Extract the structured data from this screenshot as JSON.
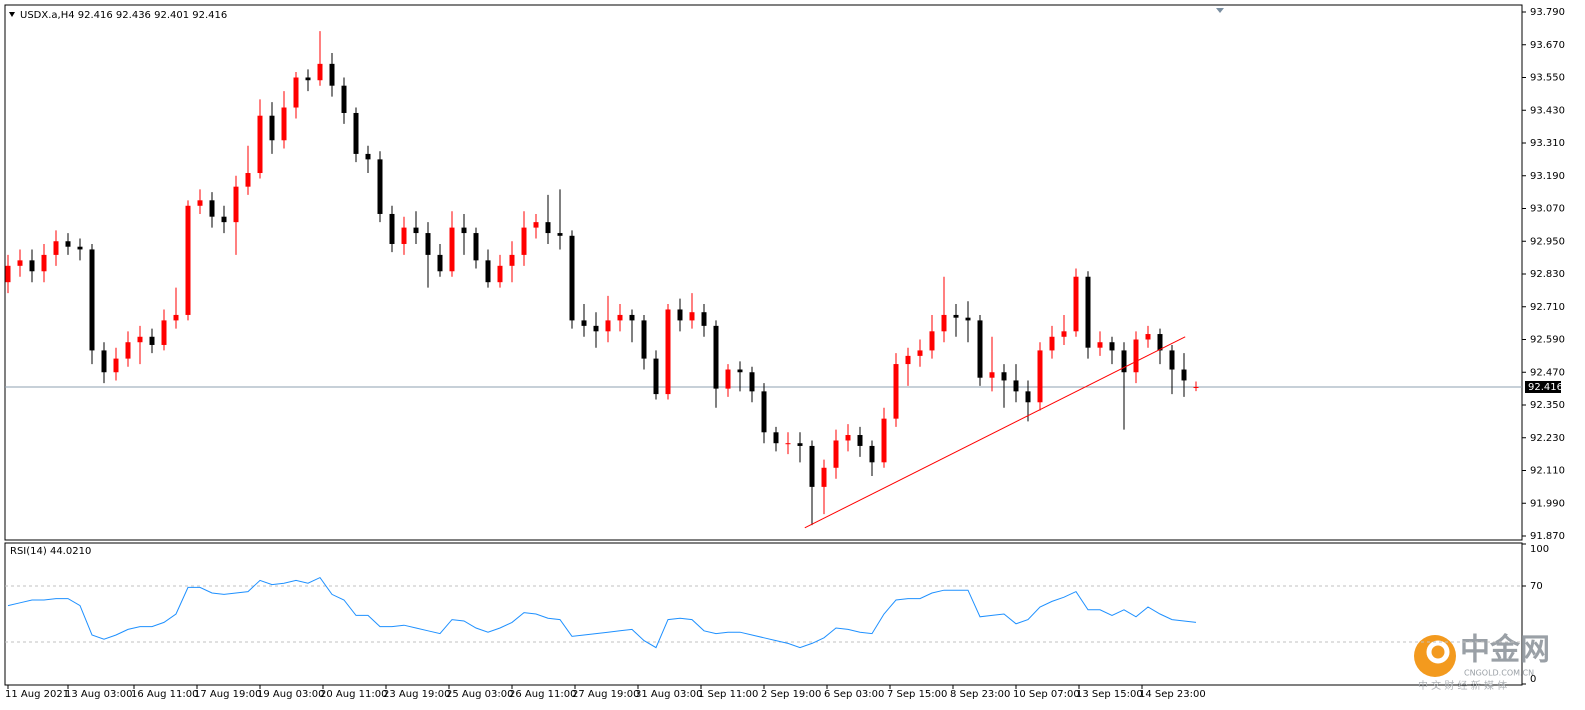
{
  "chart_data": [
    {
      "type": "candlestick",
      "title": "USDX.a,H4  92.416 92.436 92.401 92.416",
      "open": [
        92.8,
        92.86,
        92.88,
        92.84,
        92.9,
        92.95,
        92.93,
        92.92,
        92.55,
        92.47,
        92.52,
        92.58,
        92.6,
        92.57,
        92.66,
        92.68,
        93.08,
        93.1,
        93.04,
        93.02,
        93.15,
        93.2,
        93.41,
        93.32,
        93.44,
        93.55,
        93.54,
        93.6,
        93.52,
        93.42,
        93.27,
        93.25,
        93.05,
        92.94,
        93.0,
        92.98,
        92.9,
        92.84,
        93.0,
        92.98,
        92.88,
        92.8,
        92.86,
        92.9,
        93.0,
        93.02,
        92.98,
        92.97,
        92.66,
        92.64,
        92.62,
        92.66,
        92.68,
        92.66,
        92.52,
        92.39,
        92.7,
        92.66,
        92.69,
        92.64,
        92.41,
        92.48,
        92.47,
        92.4,
        92.25,
        92.21,
        92.21,
        92.2,
        92.05,
        92.12,
        92.22,
        92.24,
        92.2,
        92.14,
        92.3,
        92.5,
        92.53,
        92.55,
        92.62,
        92.68,
        92.67,
        92.66,
        92.45,
        92.47,
        92.44,
        92.4,
        92.36,
        92.55,
        92.6,
        92.62,
        92.82,
        92.56,
        92.58,
        92.55,
        92.47,
        92.59,
        92.61,
        92.55,
        92.48,
        92.416
      ],
      "high": [
        92.9,
        92.92,
        92.92,
        92.94,
        92.99,
        92.98,
        92.96,
        92.94,
        92.58,
        92.56,
        92.62,
        92.64,
        92.63,
        92.7,
        92.78,
        93.1,
        93.14,
        93.13,
        93.08,
        93.19,
        93.3,
        93.47,
        93.46,
        93.5,
        93.57,
        93.58,
        93.72,
        93.64,
        93.55,
        93.44,
        93.3,
        93.28,
        93.08,
        93.04,
        93.06,
        93.02,
        92.94,
        93.06,
        93.05,
        93.0,
        92.92,
        92.9,
        92.95,
        93.06,
        93.05,
        93.12,
        93.14,
        92.99,
        92.72,
        92.69,
        92.75,
        92.72,
        92.7,
        92.68,
        92.55,
        92.72,
        92.74,
        92.76,
        92.72,
        92.66,
        92.5,
        92.51,
        92.49,
        92.43,
        92.27,
        92.25,
        92.25,
        92.22,
        92.15,
        92.26,
        92.28,
        92.27,
        92.22,
        92.34,
        92.54,
        92.56,
        92.59,
        92.68,
        92.82,
        92.72,
        92.73,
        92.68,
        92.6,
        92.5,
        92.5,
        92.44,
        92.58,
        92.64,
        92.68,
        92.85,
        92.84,
        92.62,
        92.6,
        92.58,
        92.62,
        92.64,
        92.63,
        92.57,
        92.54,
        92.436
      ],
      "low": [
        92.76,
        92.82,
        92.8,
        92.8,
        92.86,
        92.9,
        92.88,
        92.5,
        92.43,
        92.44,
        92.49,
        92.5,
        92.54,
        92.55,
        92.63,
        92.66,
        93.05,
        93.0,
        92.98,
        92.9,
        93.12,
        93.18,
        93.27,
        93.29,
        93.4,
        93.5,
        93.52,
        93.48,
        93.38,
        93.24,
        93.2,
        93.02,
        92.91,
        92.9,
        92.94,
        92.78,
        92.82,
        92.82,
        92.9,
        92.85,
        92.78,
        92.78,
        92.8,
        92.86,
        92.96,
        92.94,
        92.92,
        92.63,
        92.6,
        92.56,
        92.58,
        92.62,
        92.58,
        92.48,
        92.37,
        92.37,
        92.62,
        92.63,
        92.6,
        92.34,
        92.38,
        92.4,
        92.36,
        92.21,
        92.18,
        92.17,
        92.14,
        91.91,
        91.95,
        92.08,
        92.18,
        92.16,
        92.09,
        92.12,
        92.27,
        92.42,
        92.49,
        92.52,
        92.58,
        92.6,
        92.58,
        92.42,
        92.4,
        92.34,
        92.36,
        92.29,
        92.33,
        92.52,
        92.57,
        92.6,
        92.52,
        92.53,
        92.5,
        92.26,
        92.43,
        92.56,
        92.5,
        92.39,
        92.38,
        92.401
      ],
      "close": [
        92.86,
        92.88,
        92.84,
        92.9,
        92.95,
        92.93,
        92.92,
        92.55,
        92.47,
        92.52,
        92.58,
        92.6,
        92.57,
        92.66,
        92.68,
        93.08,
        93.1,
        93.04,
        93.02,
        93.15,
        93.2,
        93.41,
        93.32,
        93.44,
        93.55,
        93.54,
        93.6,
        93.52,
        93.42,
        93.27,
        93.25,
        93.05,
        92.94,
        93.0,
        92.98,
        92.9,
        92.84,
        93.0,
        92.98,
        92.88,
        92.8,
        92.86,
        92.9,
        93.0,
        93.02,
        92.98,
        92.97,
        92.66,
        92.64,
        92.62,
        92.66,
        92.68,
        92.66,
        92.52,
        92.39,
        92.7,
        92.66,
        92.69,
        92.64,
        92.41,
        92.48,
        92.47,
        92.4,
        92.25,
        92.21,
        92.21,
        92.2,
        92.05,
        92.12,
        92.22,
        92.24,
        92.2,
        92.14,
        92.3,
        92.5,
        92.53,
        92.55,
        92.62,
        92.68,
        92.67,
        92.66,
        92.45,
        92.47,
        92.44,
        92.4,
        92.36,
        92.55,
        92.6,
        92.62,
        92.82,
        92.56,
        92.58,
        92.55,
        92.47,
        92.59,
        92.61,
        92.55,
        92.48,
        92.44,
        92.416
      ],
      "up_color": "#ff0000",
      "down_color": "#000000",
      "last_price": 92.416,
      "last_price_color": "#8fa0b0",
      "trendline": {
        "color": "#ff0000",
        "x": [
          66.4,
          98.1
        ],
        "y": [
          91.9,
          92.6
        ]
      },
      "ylim": [
        91.87,
        93.79
      ],
      "yticks": [
        {
          "value": 93.79,
          "label": "93.790"
        },
        {
          "value": 93.67,
          "label": "93.670"
        },
        {
          "value": 93.55,
          "label": "93.550"
        },
        {
          "value": 93.43,
          "label": "93.430"
        },
        {
          "value": 93.31,
          "label": "93.310"
        },
        {
          "value": 93.19,
          "label": "93.190"
        },
        {
          "value": 93.07,
          "label": "93.070"
        },
        {
          "value": 92.95,
          "label": "92.950"
        },
        {
          "value": 92.83,
          "label": "92.830"
        },
        {
          "value": 92.71,
          "label": "92.710"
        },
        {
          "value": 92.59,
          "label": "92.590"
        },
        {
          "value": 92.47,
          "label": "92.470"
        },
        {
          "value": 92.35,
          "label": "92.350"
        },
        {
          "value": 92.23,
          "label": "92.230"
        },
        {
          "value": 92.11,
          "label": "92.110"
        },
        {
          "value": 91.99,
          "label": "91.990"
        },
        {
          "value": 91.87,
          "label": "91.870"
        }
      ],
      "xticks": [
        {
          "value": 0,
          "label": "11 Aug 2021"
        },
        {
          "value": 5,
          "label": "13 Aug 03:00"
        },
        {
          "value": 10.5,
          "label": "16 Aug 11:00"
        },
        {
          "value": 15.75,
          "label": "17 Aug 19:00"
        },
        {
          "value": 21,
          "label": "19 Aug 03:00"
        },
        {
          "value": 26.25,
          "label": "20 Aug 11:00"
        },
        {
          "value": 31.5,
          "label": "23 Aug 19:00"
        },
        {
          "value": 36.75,
          "label": "25 Aug 03:00"
        },
        {
          "value": 42,
          "label": "26 Aug 11:00"
        },
        {
          "value": 47.25,
          "label": "27 Aug 19:00"
        },
        {
          "value": 52.5,
          "label": "31 Aug 03:00"
        },
        {
          "value": 57.75,
          "label": "1 Sep 11:00"
        },
        {
          "value": 63,
          "label": "2 Sep 19:00"
        },
        {
          "value": 68.25,
          "label": "6 Sep 03:00"
        },
        {
          "value": 73.5,
          "label": "7 Sep 15:00"
        },
        {
          "value": 78.75,
          "label": "8 Sep 23:00"
        },
        {
          "value": 84,
          "label": "10 Sep 07:00"
        },
        {
          "value": 89.25,
          "label": "13 Sep 15:00"
        },
        {
          "value": 94.5,
          "label": "14 Sep 23:00"
        }
      ]
    },
    {
      "type": "line",
      "title": "RSI(14) 44.0210",
      "color": "#1e90ff",
      "values": [
        56,
        58,
        60,
        60,
        61,
        61,
        56,
        35,
        32,
        35,
        39,
        41,
        41,
        44,
        50,
        69,
        69,
        65,
        64,
        65,
        66,
        74,
        71,
        72,
        74,
        72,
        76,
        64,
        60,
        49,
        49,
        41,
        41,
        42,
        40,
        38,
        36,
        46,
        45,
        40,
        37,
        40,
        44,
        51,
        50,
        47,
        46,
        34,
        35,
        36,
        37,
        38,
        39,
        31,
        26,
        46,
        47,
        46,
        38,
        36,
        37,
        37,
        35,
        33,
        31,
        29,
        26,
        29,
        33,
        40,
        39,
        37,
        36,
        50,
        60,
        61,
        61,
        65,
        67,
        67,
        67,
        48,
        49,
        50,
        43,
        46,
        55,
        59,
        62,
        66,
        53,
        53,
        49,
        53,
        48,
        55,
        50,
        46,
        45,
        44.021
      ],
      "ylim": [
        0,
        100
      ],
      "yticks": [
        100,
        70,
        0
      ],
      "levels": [
        70,
        30
      ]
    }
  ],
  "watermark": {
    "name": "中金网",
    "domain": "CNGOLD.COM.CN",
    "slogan": "中 文 财 经 新 媒 体"
  }
}
